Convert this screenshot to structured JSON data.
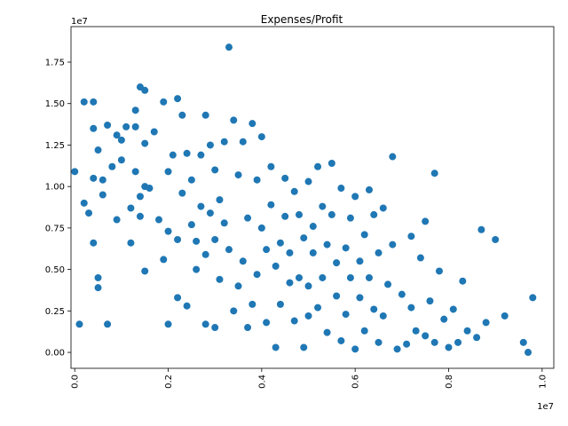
{
  "chart_data": {
    "type": "scatter",
    "title": "Expenses/Profit",
    "color": "#1f77b4",
    "x_offset_label": "1e7",
    "y_offset_label": "1e7",
    "xlim": [
      -0.008,
      1.025
    ],
    "ylim": [
      -0.096,
      1.964
    ],
    "xticks": [
      {
        "value": 0,
        "label": "0.0"
      },
      0.2,
      0.4,
      0.6,
      0.8,
      {
        "value": 1,
        "label": "1.0"
      }
    ],
    "yticks": [
      {
        "value": 0,
        "label": "0.00"
      },
      0.25,
      {
        "value": 0.5,
        "label": "0.50"
      },
      0.75,
      {
        "value": 1,
        "label": "1.00"
      },
      1.25,
      {
        "value": 1.5,
        "label": "1.50"
      },
      1.75
    ],
    "x": [
      0.0,
      0.01,
      0.02,
      0.02,
      0.03,
      0.04,
      0.04,
      0.04,
      0.04,
      0.05,
      0.05,
      0.05,
      0.06,
      0.06,
      0.07,
      0.07,
      0.08,
      0.09,
      0.09,
      0.1,
      0.1,
      0.11,
      0.12,
      0.12,
      0.13,
      0.13,
      0.13,
      0.14,
      0.14,
      0.14,
      0.15,
      0.15,
      0.15,
      0.15,
      0.16,
      0.17,
      0.18,
      0.19,
      0.19,
      0.2,
      0.2,
      0.2,
      0.21,
      0.22,
      0.22,
      0.22,
      0.23,
      0.23,
      0.24,
      0.24,
      0.25,
      0.25,
      0.26,
      0.26,
      0.27,
      0.27,
      0.28,
      0.28,
      0.28,
      0.29,
      0.29,
      0.3,
      0.3,
      0.3,
      0.31,
      0.31,
      0.32,
      0.32,
      0.33,
      0.33,
      0.34,
      0.34,
      0.35,
      0.35,
      0.36,
      0.36,
      0.37,
      0.37,
      0.38,
      0.38,
      0.39,
      0.39,
      0.4,
      0.4,
      0.41,
      0.41,
      0.42,
      0.42,
      0.43,
      0.43,
      0.44,
      0.44,
      0.45,
      0.45,
      0.46,
      0.46,
      0.47,
      0.47,
      0.48,
      0.48,
      0.49,
      0.49,
      0.5,
      0.5,
      0.5,
      0.51,
      0.51,
      0.52,
      0.52,
      0.53,
      0.53,
      0.54,
      0.54,
      0.55,
      0.55,
      0.56,
      0.56,
      0.57,
      0.57,
      0.58,
      0.58,
      0.59,
      0.59,
      0.6,
      0.6,
      0.61,
      0.61,
      0.62,
      0.62,
      0.63,
      0.63,
      0.64,
      0.64,
      0.65,
      0.65,
      0.66,
      0.66,
      0.67,
      0.68,
      0.68,
      0.69,
      0.7,
      0.71,
      0.72,
      0.72,
      0.73,
      0.74,
      0.75,
      0.75,
      0.76,
      0.77,
      0.77,
      0.78,
      0.79,
      0.8,
      0.81,
      0.82,
      0.83,
      0.84,
      0.86,
      0.87,
      0.88,
      0.9,
      0.92,
      0.96,
      0.97,
      0.98
    ],
    "values": [
      1.09,
      0.17,
      0.9,
      1.51,
      0.84,
      1.05,
      1.51,
      0.66,
      1.35,
      0.45,
      0.39,
      1.22,
      1.04,
      0.95,
      0.17,
      1.37,
      1.12,
      0.8,
      1.31,
      1.28,
      1.16,
      1.36,
      0.87,
      0.66,
      1.46,
      1.36,
      1.09,
      0.94,
      1.6,
      0.82,
      1.58,
      1.26,
      1.0,
      0.49,
      0.99,
      1.33,
      0.8,
      0.56,
      1.51,
      0.17,
      1.09,
      0.73,
      1.19,
      1.53,
      0.33,
      0.68,
      1.43,
      0.96,
      1.2,
      0.28,
      0.77,
      1.04,
      0.5,
      0.67,
      1.19,
      0.88,
      0.17,
      1.43,
      0.59,
      1.25,
      0.84,
      1.1,
      0.15,
      0.68,
      0.44,
      0.92,
      1.27,
      0.78,
      0.62,
      1.84,
      1.4,
      0.25,
      1.07,
      0.4,
      0.55,
      1.27,
      0.81,
      0.15,
      1.38,
      0.29,
      1.04,
      0.47,
      1.3,
      0.75,
      0.18,
      0.62,
      1.12,
      0.89,
      0.03,
      0.52,
      0.66,
      0.29,
      1.05,
      0.82,
      0.42,
      0.6,
      0.97,
      0.19,
      0.83,
      0.45,
      0.69,
      0.03,
      1.03,
      0.4,
      0.22,
      0.76,
      0.6,
      1.12,
      0.27,
      0.88,
      0.45,
      0.65,
      0.12,
      1.14,
      0.83,
      0.34,
      0.54,
      0.07,
      0.99,
      0.63,
      0.23,
      0.81,
      0.45,
      0.02,
      0.94,
      0.55,
      0.33,
      0.71,
      0.13,
      0.98,
      0.45,
      0.26,
      0.83,
      0.06,
      0.6,
      0.87,
      0.22,
      0.41,
      1.18,
      0.65,
      0.02,
      0.35,
      0.05,
      0.7,
      0.27,
      0.13,
      0.57,
      0.79,
      0.1,
      0.31,
      1.08,
      0.06,
      0.49,
      0.2,
      0.03,
      0.26,
      0.06,
      0.43,
      0.13,
      0.09,
      0.74,
      0.18,
      0.68,
      0.22,
      0.06,
      0.0,
      0.33
    ]
  }
}
